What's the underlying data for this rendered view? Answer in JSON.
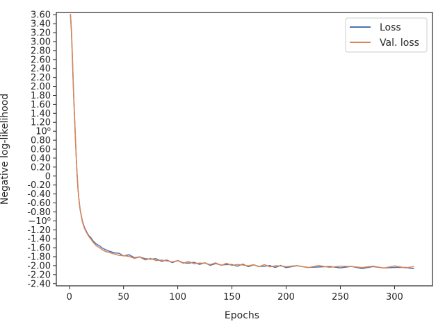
{
  "chart_data": {
    "type": "line",
    "title": "",
    "xlabel": "Epochs",
    "ylabel": "Negative log-likelihood",
    "xlim": [
      -12,
      335
    ],
    "ylim": [
      -2.45,
      3.65
    ],
    "y_scale": "symlog",
    "grid": false,
    "legend_position": "top-right",
    "x_ticks": [
      {
        "value": 0,
        "label": "0"
      },
      {
        "value": 50,
        "label": "50"
      },
      {
        "value": 100,
        "label": "100"
      },
      {
        "value": 150,
        "label": "150"
      },
      {
        "value": 200,
        "label": "200"
      },
      {
        "value": 250,
        "label": "250"
      },
      {
        "value": 300,
        "label": "300"
      }
    ],
    "y_ticks": [
      {
        "value": 3.6,
        "label": "3.60"
      },
      {
        "value": 3.4,
        "label": "3.40"
      },
      {
        "value": 3.2,
        "label": "3.20"
      },
      {
        "value": 3.0,
        "label": "3.00"
      },
      {
        "value": 2.8,
        "label": "2.80"
      },
      {
        "value": 2.6,
        "label": "2.60"
      },
      {
        "value": 2.4,
        "label": "2.40"
      },
      {
        "value": 2.2,
        "label": "2.20"
      },
      {
        "value": 2.0,
        "label": "2.00"
      },
      {
        "value": 1.8,
        "label": "1.80"
      },
      {
        "value": 1.6,
        "label": "1.60"
      },
      {
        "value": 1.4,
        "label": "1.40"
      },
      {
        "value": 1.2,
        "label": "1.20"
      },
      {
        "value": 1.0,
        "label": "10⁰"
      },
      {
        "value": 0.8,
        "label": "0.80"
      },
      {
        "value": 0.6,
        "label": "0.60"
      },
      {
        "value": 0.4,
        "label": "0.40"
      },
      {
        "value": 0.2,
        "label": "0.20"
      },
      {
        "value": 0,
        "label": "0"
      },
      {
        "value": -0.2,
        "label": "-0.20"
      },
      {
        "value": -0.4,
        "label": "-0.40"
      },
      {
        "value": -0.6,
        "label": "-0.60"
      },
      {
        "value": -0.8,
        "label": "-0.80"
      },
      {
        "value": -1.0,
        "label": "−10⁰"
      },
      {
        "value": -1.2,
        "label": "-1.20"
      },
      {
        "value": -1.4,
        "label": "-1.40"
      },
      {
        "value": -1.6,
        "label": "-1.60"
      },
      {
        "value": -1.8,
        "label": "-1.80"
      },
      {
        "value": -2.0,
        "label": "-2.00"
      },
      {
        "value": -2.2,
        "label": "-2.20"
      },
      {
        "value": -2.4,
        "label": "-2.40"
      }
    ],
    "series": [
      {
        "name": "Loss",
        "color": "#4c72b0",
        "x": [
          1,
          2,
          3,
          4,
          5,
          6,
          7,
          8,
          9,
          10,
          12,
          14,
          16,
          18,
          20,
          22,
          25,
          28,
          30,
          33,
          36,
          40,
          43,
          46,
          50,
          55,
          60,
          65,
          70,
          75,
          80,
          85,
          90,
          95,
          100,
          105,
          110,
          115,
          120,
          125,
          130,
          135,
          140,
          145,
          150,
          155,
          160,
          165,
          170,
          175,
          180,
          185,
          190,
          195,
          200,
          210,
          220,
          230,
          240,
          250,
          260,
          270,
          280,
          290,
          300,
          310,
          318
        ],
        "y": [
          3.6,
          3.2,
          2.5,
          1.8,
          1.2,
          0.6,
          0.1,
          -0.3,
          -0.55,
          -0.75,
          -1.0,
          -1.15,
          -1.25,
          -1.33,
          -1.38,
          -1.45,
          -1.52,
          -1.56,
          -1.6,
          -1.64,
          -1.67,
          -1.7,
          -1.72,
          -1.74,
          -1.76,
          -1.78,
          -1.8,
          -1.82,
          -1.84,
          -1.85,
          -1.86,
          -1.88,
          -1.9,
          -1.91,
          -1.9,
          -1.93,
          -1.94,
          -1.94,
          -1.95,
          -1.96,
          -1.97,
          -1.97,
          -1.98,
          -1.97,
          -1.99,
          -1.99,
          -1.99,
          -2.0,
          -2.0,
          -2.01,
          -2.01,
          -2.01,
          -2.02,
          -2.02,
          -2.02,
          -2.02,
          -2.03,
          -2.03,
          -2.03,
          -2.03,
          -2.04,
          -2.04,
          -2.04,
          -2.04,
          -2.04,
          -2.05,
          -2.05
        ]
      },
      {
        "name": "Val. loss",
        "color": "#dd8452",
        "x": [
          1,
          2,
          3,
          4,
          5,
          6,
          7,
          8,
          9,
          10,
          12,
          14,
          16,
          18,
          20,
          22,
          25,
          28,
          30,
          33,
          36,
          40,
          43,
          46,
          50,
          55,
          60,
          65,
          70,
          75,
          80,
          85,
          90,
          95,
          100,
          105,
          110,
          115,
          120,
          125,
          130,
          135,
          140,
          145,
          150,
          155,
          160,
          165,
          170,
          175,
          180,
          185,
          190,
          195,
          200,
          210,
          220,
          230,
          240,
          250,
          260,
          270,
          280,
          290,
          300,
          310,
          318
        ],
        "y": [
          3.62,
          3.25,
          2.55,
          1.85,
          1.22,
          0.62,
          0.12,
          -0.28,
          -0.55,
          -0.76,
          -1.02,
          -1.17,
          -1.27,
          -1.35,
          -1.41,
          -1.48,
          -1.56,
          -1.6,
          -1.64,
          -1.68,
          -1.7,
          -1.73,
          -1.75,
          -1.76,
          -1.78,
          -1.8,
          -1.82,
          -1.83,
          -1.85,
          -1.86,
          -1.87,
          -1.88,
          -1.9,
          -1.9,
          -1.91,
          -1.92,
          -1.93,
          -1.94,
          -1.95,
          -1.95,
          -1.96,
          -1.96,
          -1.97,
          -1.97,
          -1.98,
          -1.98,
          -1.99,
          -1.99,
          -2.0,
          -2.0,
          -2.0,
          -2.01,
          -2.01,
          -2.01,
          -2.01,
          -2.02,
          -2.02,
          -2.02,
          -2.02,
          -2.02,
          -2.02,
          -2.03,
          -2.03,
          -2.03,
          -2.03,
          -2.03,
          -2.03
        ]
      }
    ]
  }
}
